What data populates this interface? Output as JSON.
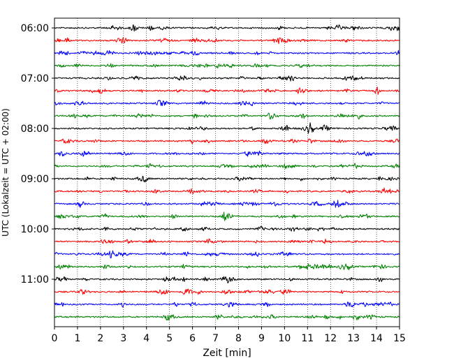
{
  "chart_data": {
    "type": "line",
    "title": "",
    "xlabel": "Zeit  [min]",
    "ylabel": "UTC (Lokalzeit = UTC + 02:00)",
    "xlim": [
      0,
      15
    ],
    "x_ticks": [
      "0",
      "1",
      "2",
      "3",
      "4",
      "5",
      "6",
      "7",
      "8",
      "9",
      "10",
      "11",
      "12",
      "13",
      "14",
      "15"
    ],
    "y_ticks": [
      "06:00",
      "07:00",
      "08:00",
      "09:00",
      "10:00",
      "11:00"
    ],
    "grid": "vertical dotted at each minute",
    "row_minutes": 15,
    "trace_colors": [
      "#000000",
      "#ff0000",
      "#0000ff",
      "#008000"
    ],
    "series": [
      {
        "start": "06:00"
      },
      {
        "start": "06:15"
      },
      {
        "start": "06:30"
      },
      {
        "start": "06:45"
      },
      {
        "start": "07:00"
      },
      {
        "start": "07:15"
      },
      {
        "start": "07:30"
      },
      {
        "start": "07:45"
      },
      {
        "start": "08:00"
      },
      {
        "start": "08:15"
      },
      {
        "start": "08:30"
      },
      {
        "start": "08:45"
      },
      {
        "start": "09:00"
      },
      {
        "start": "09:15"
      },
      {
        "start": "09:30"
      },
      {
        "start": "09:45"
      },
      {
        "start": "10:00"
      },
      {
        "start": "10:15"
      },
      {
        "start": "10:30"
      },
      {
        "start": "10:45"
      },
      {
        "start": "11:00"
      },
      {
        "start": "11:15"
      },
      {
        "start": "11:30"
      },
      {
        "start": "11:45"
      }
    ]
  }
}
